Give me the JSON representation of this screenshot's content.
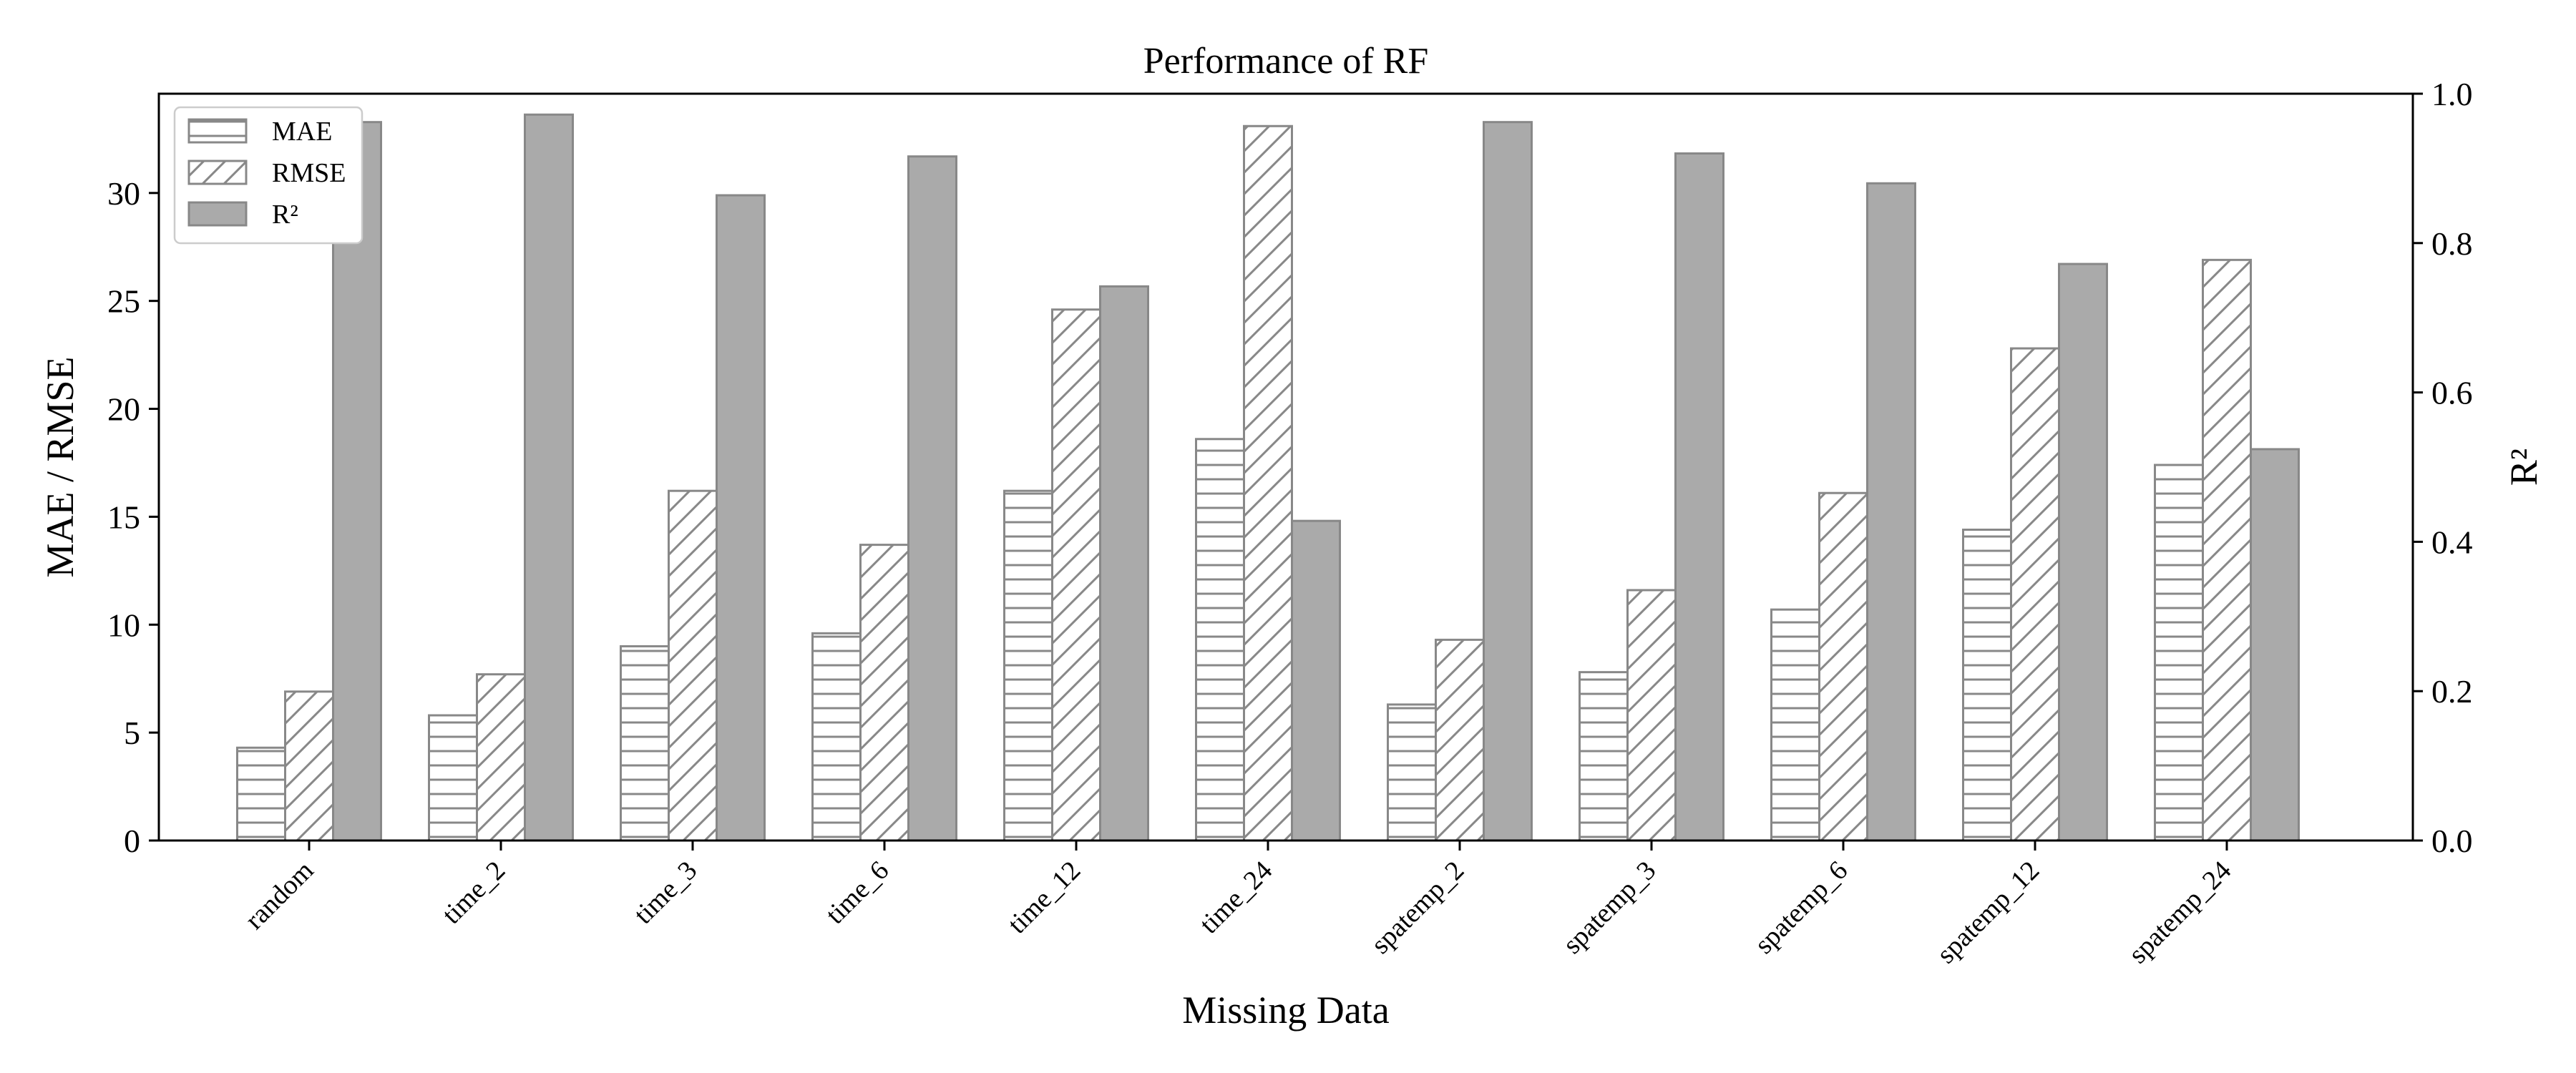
{
  "chart_data": {
    "type": "bar",
    "title": "Performance of RF",
    "xlabel": "Missing Data",
    "ylabel": "MAE / RMSE",
    "y2label": "R²",
    "ylim": [
      0,
      34.6
    ],
    "y2lim": [
      0,
      1.0
    ],
    "yticks": [
      0,
      5,
      10,
      15,
      20,
      25,
      30
    ],
    "y2ticks": [
      "0.0",
      "0.2",
      "0.4",
      "0.6",
      "0.8",
      "1.0"
    ],
    "grid": false,
    "legend_position": "top-left",
    "categories": [
      "random",
      "time_2",
      "time_3",
      "time_6",
      "time_12",
      "time_24",
      "spatemp_2",
      "spatemp_3",
      "spatemp_6",
      "spatemp_12",
      "spatemp_24"
    ],
    "series": [
      {
        "name": "MAE",
        "axis": "left",
        "hatch": "horizontal",
        "values": [
          4.3,
          5.8,
          9.0,
          9.6,
          16.2,
          18.6,
          6.3,
          7.8,
          10.7,
          14.4,
          17.4
        ]
      },
      {
        "name": "RMSE",
        "axis": "left",
        "hatch": "diagonal",
        "values": [
          6.9,
          7.7,
          16.2,
          13.7,
          24.6,
          33.1,
          9.3,
          11.6,
          16.1,
          22.8,
          26.9
        ]
      },
      {
        "name": "R²",
        "axis": "right",
        "hatch": "none",
        "values": [
          0.962,
          0.972,
          0.864,
          0.916,
          0.742,
          0.428,
          0.962,
          0.92,
          0.88,
          0.772,
          0.524
        ]
      }
    ],
    "colors": {
      "bar_edge": "#888888",
      "r2_fill": "#aaaaaa",
      "hatch": "#888888"
    }
  }
}
